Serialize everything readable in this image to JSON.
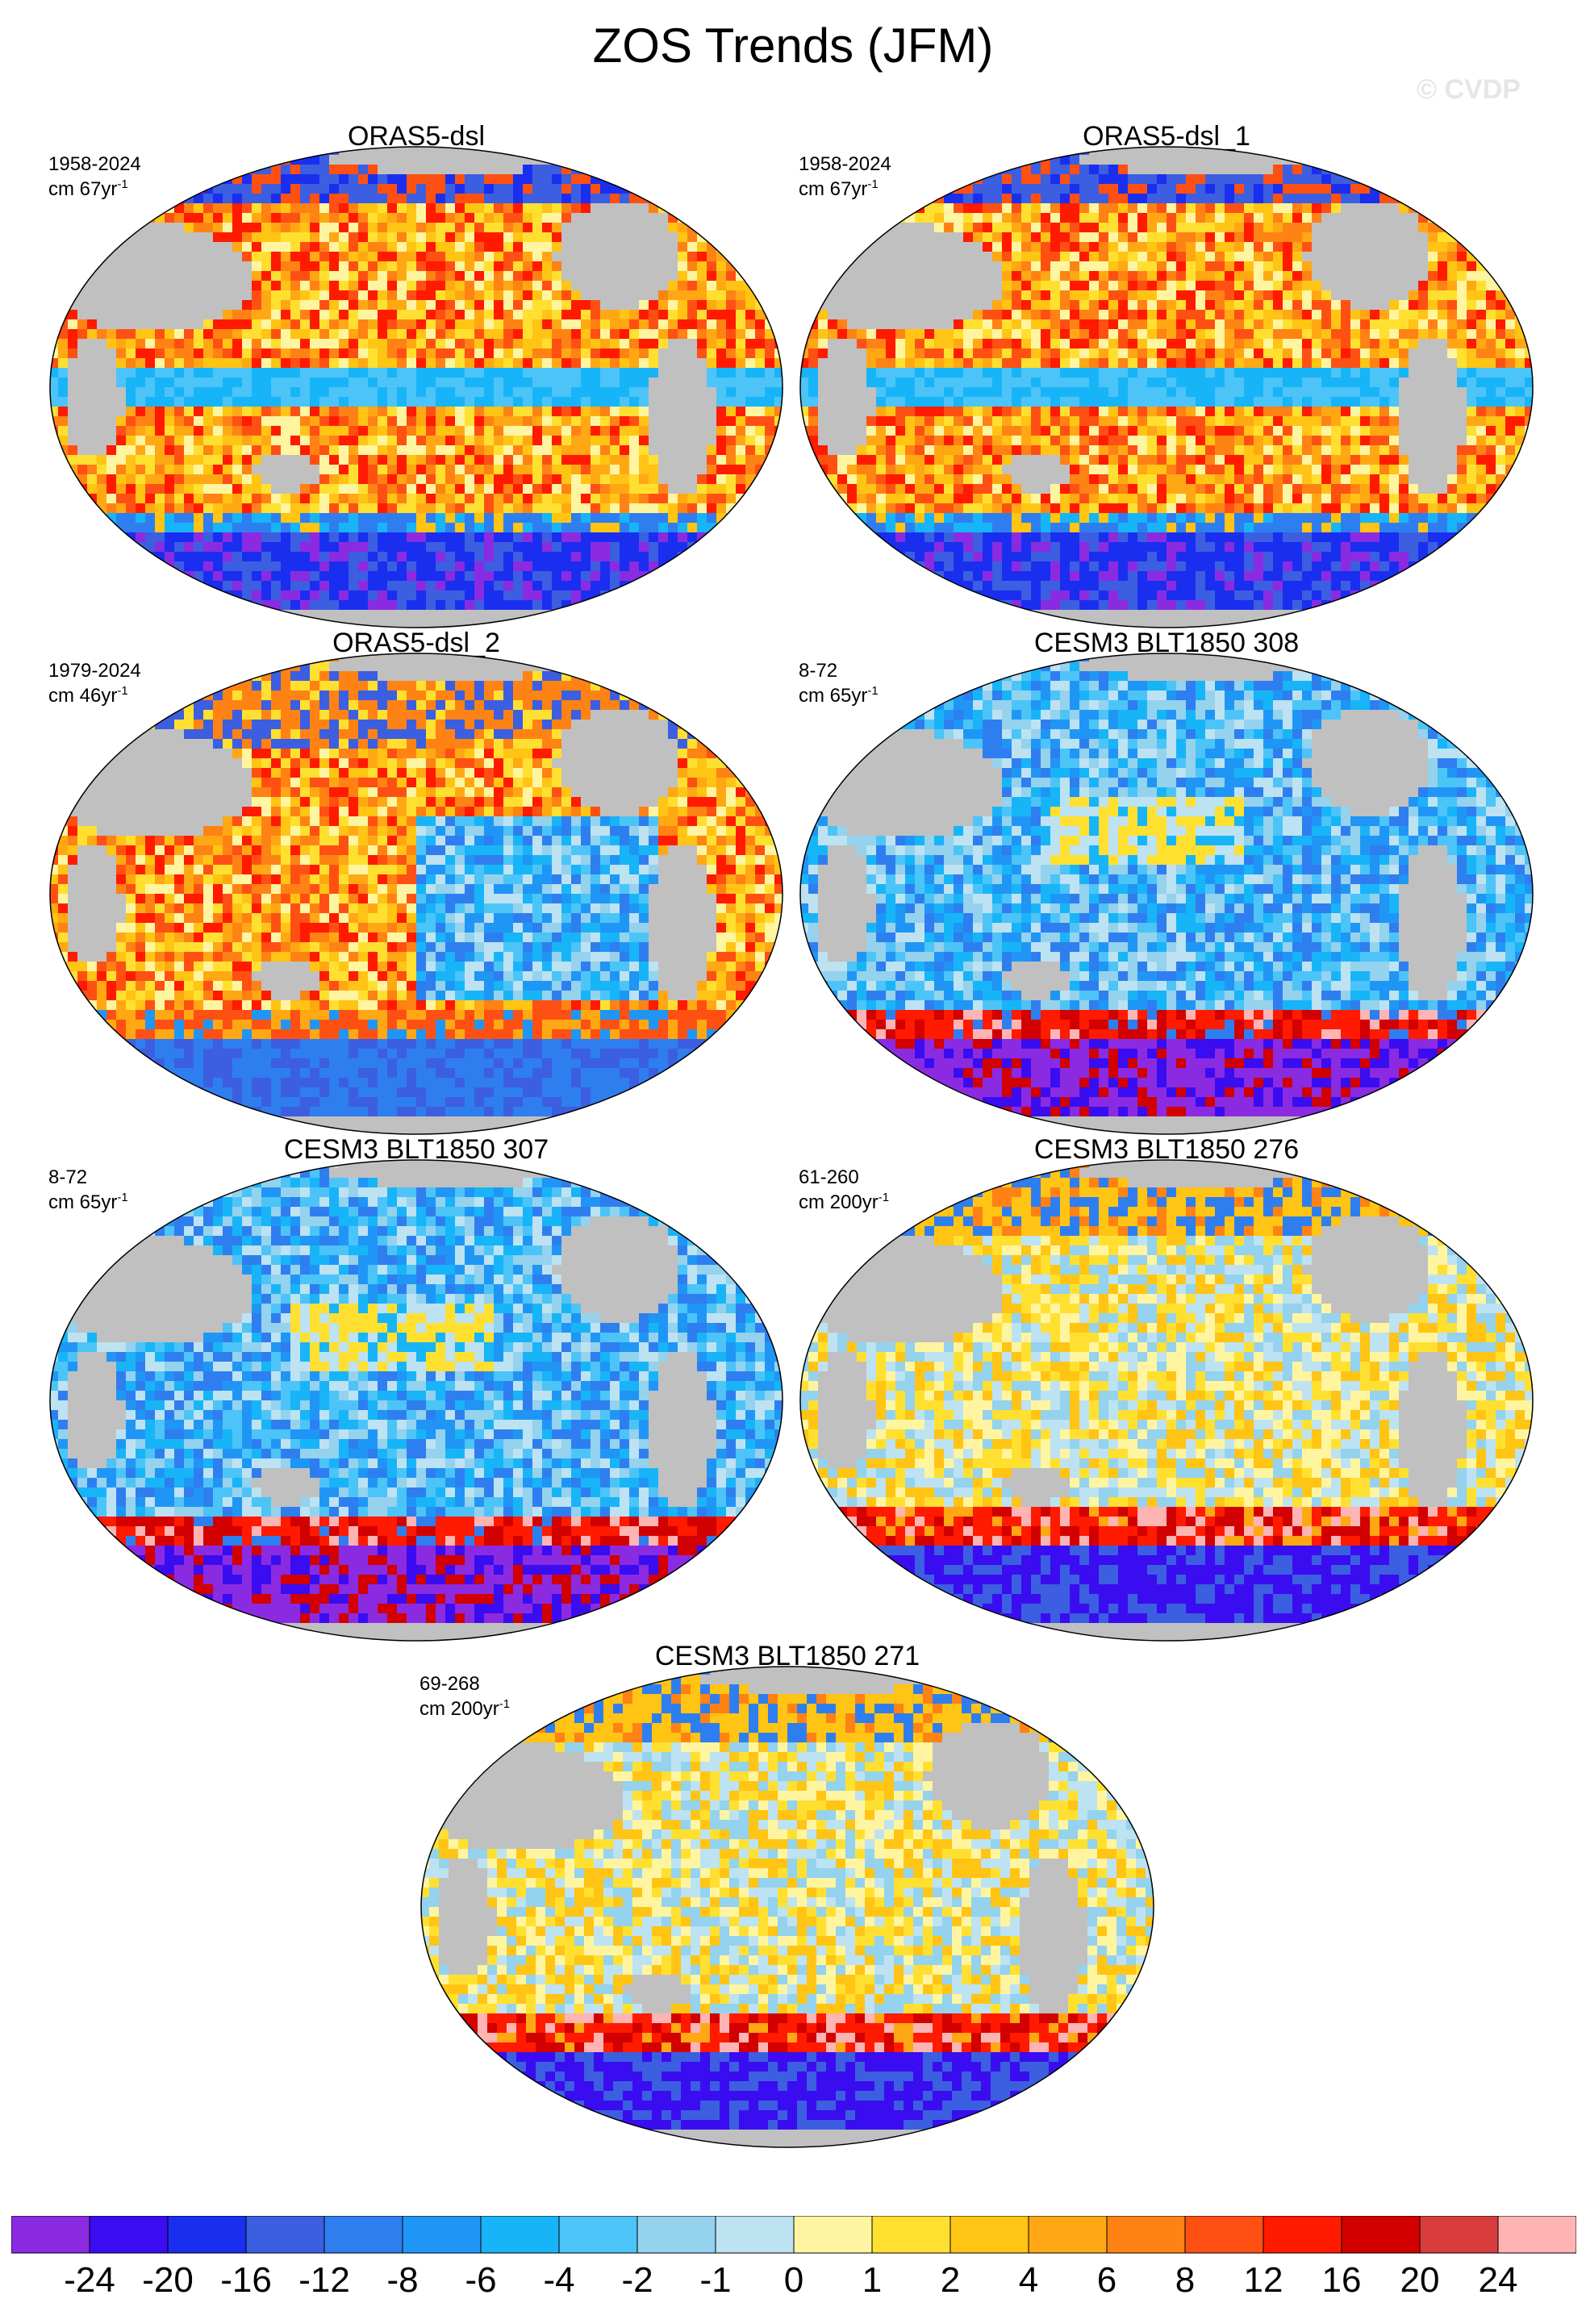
{
  "title": "ZOS Trends (JFM)",
  "watermark": "© CVDP",
  "panels": [
    {
      "title": "ORAS5-dsl",
      "years": "1958-2024",
      "units": "cm 67yr",
      "units_exp": "-1",
      "scheme": "warm"
    },
    {
      "title": "ORAS5-dsl_1",
      "years": "1958-2024",
      "units": "cm 67yr",
      "units_exp": "-1",
      "scheme": "warm"
    },
    {
      "title": "ORAS5-dsl_2",
      "years": "1979-2024",
      "units": "cm 46yr",
      "units_exp": "-1",
      "scheme": "mixed"
    },
    {
      "title": "CESM3 BLT1850 308",
      "years": "8-72",
      "units": "cm 65yr",
      "units_exp": "-1",
      "scheme": "cool"
    },
    {
      "title": "CESM3 BLT1850 307",
      "years": "8-72",
      "units": "cm 65yr",
      "units_exp": "-1",
      "scheme": "cool"
    },
    {
      "title": "CESM3 BLT1850 276",
      "years": "61-260",
      "units": "cm 200yr",
      "units_exp": "-1",
      "scheme": "mild"
    },
    {
      "title": "CESM3 BLT1850 271",
      "years": "69-268",
      "units": "cm 200yr",
      "units_exp": "-1",
      "scheme": "mild"
    }
  ],
  "colorbar": {
    "colors": [
      "#8a2be2",
      "#3a0cf0",
      "#1a2ef0",
      "#3c5ee0",
      "#2f7ef0",
      "#1f96f5",
      "#18b4f8",
      "#4cc4f8",
      "#94d2ee",
      "#bde2f2",
      "#fff5a0",
      "#ffe030",
      "#ffc414",
      "#ffa814",
      "#ff8214",
      "#ff5014",
      "#ff1a00",
      "#d20000",
      "#d83c3c",
      "#ffb4b4"
    ],
    "labels": [
      "-24",
      "-20",
      "-16",
      "-12",
      "-8",
      "-6",
      "-4",
      "-2",
      "-1",
      "0",
      "1",
      "2",
      "4",
      "6",
      "8",
      "12",
      "16",
      "20",
      "24"
    ]
  }
}
